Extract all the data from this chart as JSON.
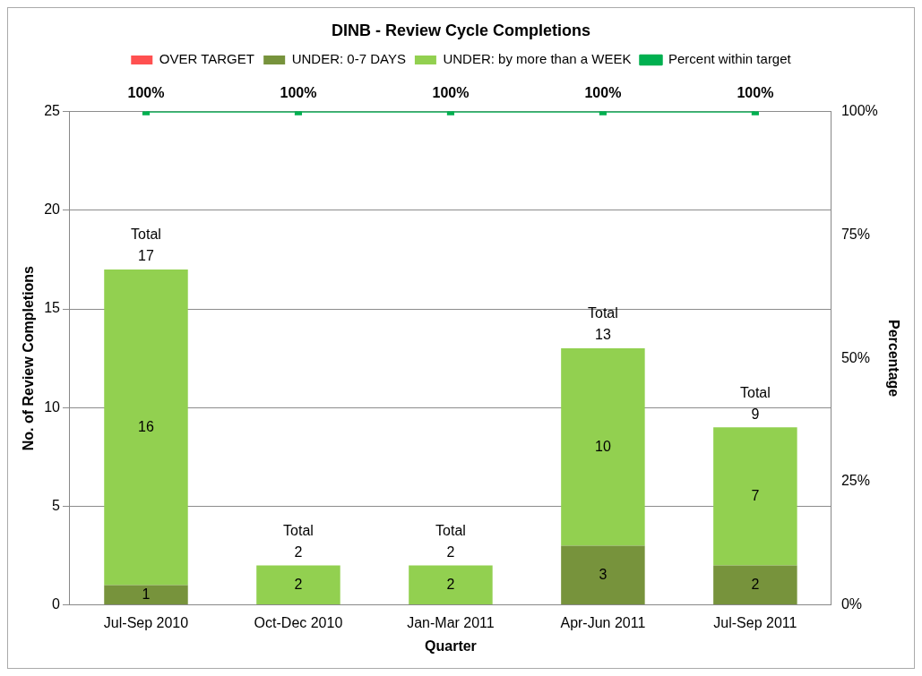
{
  "chart_data": {
    "type": "bar",
    "title": "DINB - Review Cycle Completions",
    "xlabel": "Quarter",
    "ylabel": "No. of Review Completions",
    "y2label": "Percentage",
    "categories": [
      "Jul-Sep 2010",
      "Oct-Dec 2010",
      "Jan-Mar 2011",
      "Apr-Jun 2011",
      "Jul-Sep 2011"
    ],
    "stacked": true,
    "series": [
      {
        "name": "OVER TARGET",
        "color": "#ff5050",
        "values": [
          0,
          0,
          0,
          0,
          0
        ]
      },
      {
        "name": "UNDER: 0-7 DAYS",
        "color": "#77933c",
        "values": [
          1,
          0,
          0,
          3,
          2
        ],
        "value_labels": [
          "1",
          null,
          null,
          "3",
          "2"
        ]
      },
      {
        "name": "UNDER: by more than a WEEK",
        "color": "#92d050",
        "values": [
          16,
          2,
          2,
          10,
          7
        ],
        "value_labels": [
          "16",
          "2",
          "2",
          "10",
          "7"
        ]
      },
      {
        "name": "Percent within target",
        "type": "line",
        "axis": "y2",
        "color": "#00b050",
        "marker": "square",
        "values": [
          100,
          100,
          100,
          100,
          100
        ],
        "value_labels": [
          "100%",
          "100%",
          "100%",
          "100%",
          "100%"
        ]
      }
    ],
    "totals": [
      "Total 17",
      "Total 2",
      "Total 2",
      "Total 13",
      "Total 9"
    ],
    "ylim": [
      0,
      25
    ],
    "yticks": [
      0,
      5,
      10,
      15,
      20,
      25
    ],
    "y2lim": [
      0,
      100
    ],
    "y2ticks": [
      {
        "value": 0,
        "label": "0%"
      },
      {
        "value": 25,
        "label": "25%"
      },
      {
        "value": 50,
        "label": "50%"
      },
      {
        "value": 75,
        "label": "75%"
      },
      {
        "value": 100,
        "label": "100%"
      }
    ],
    "grid": "y",
    "legend": "top"
  }
}
